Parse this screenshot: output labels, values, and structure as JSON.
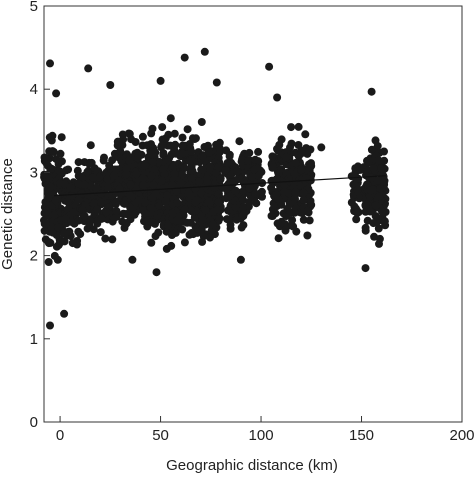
{
  "chart_data": {
    "type": "scatter",
    "xlabel": "Geographic distance (km)",
    "ylabel": "Genetic distance",
    "xlim": [
      -8,
      200
    ],
    "ylim": [
      0,
      5
    ],
    "x_ticks": [
      0,
      50,
      100,
      150,
      200
    ],
    "y_ticks": [
      0,
      1,
      2,
      3,
      4,
      5
    ],
    "grid": false,
    "point_color": "#1a1a1a",
    "trend_line": {
      "x": [
        -3,
        162
      ],
      "y": [
        2.72,
        2.96
      ]
    },
    "clusters": [
      {
        "x_min": -8,
        "x_max": 1,
        "y_min": 1.55,
        "y_max": 3.8,
        "count": 150
      },
      {
        "x_min": 2,
        "x_max": 9,
        "y_min": 1.9,
        "y_max": 3.3,
        "count": 70
      },
      {
        "x_min": 9,
        "x_max": 27,
        "y_min": 2.0,
        "y_max": 3.5,
        "count": 200
      },
      {
        "x_min": 27,
        "x_max": 45,
        "y_min": 2.0,
        "y_max": 3.7,
        "count": 260
      },
      {
        "x_min": 45,
        "x_max": 80,
        "y_min": 1.85,
        "y_max": 3.8,
        "count": 620
      },
      {
        "x_min": 82,
        "x_max": 93,
        "y_min": 2.1,
        "y_max": 3.6,
        "count": 120
      },
      {
        "x_min": 93,
        "x_max": 101,
        "y_min": 2.3,
        "y_max": 3.5,
        "count": 60
      },
      {
        "x_min": 105,
        "x_max": 125,
        "y_min": 2.0,
        "y_max": 3.7,
        "count": 230
      },
      {
        "x_min": 145,
        "x_max": 152,
        "y_min": 2.1,
        "y_max": 3.4,
        "count": 40
      },
      {
        "x_min": 152,
        "x_max": 162,
        "y_min": 1.9,
        "y_max": 3.7,
        "count": 140
      }
    ],
    "outliers": [
      {
        "x": -5,
        "y": 4.31
      },
      {
        "x": -5,
        "y": 1.16
      },
      {
        "x": 2,
        "y": 1.3
      },
      {
        "x": 14,
        "y": 4.25
      },
      {
        "x": 25,
        "y": 4.05
      },
      {
        "x": 50,
        "y": 4.1
      },
      {
        "x": 72,
        "y": 4.45
      },
      {
        "x": 62,
        "y": 4.38
      },
      {
        "x": 104,
        "y": 4.27
      },
      {
        "x": 155,
        "y": 3.97
      },
      {
        "x": 48,
        "y": 1.8
      },
      {
        "x": 130,
        "y": 3.3
      },
      {
        "x": 108,
        "y": 3.9
      },
      {
        "x": 90,
        "y": 1.95
      },
      {
        "x": 152,
        "y": 1.85
      },
      {
        "x": -2,
        "y": 3.95
      },
      {
        "x": 36,
        "y": 1.95
      },
      {
        "x": 78,
        "y": 4.08
      }
    ]
  }
}
